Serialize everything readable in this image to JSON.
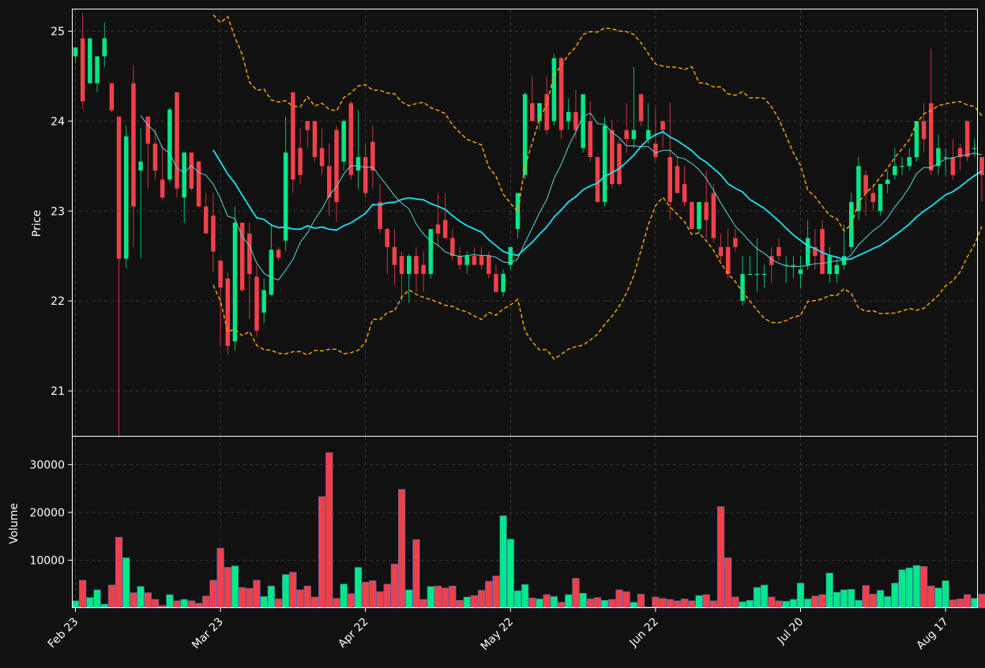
{
  "colors": {
    "background": "#111111",
    "up": "#00e887",
    "down": "#f2404a",
    "ma_fast": "#5ad7e0",
    "ma_slow": "#16e6f6",
    "band": "#f5a300",
    "grid": "#3a3a3a",
    "frame": "#ffffff",
    "text": "#ffffff"
  },
  "chart_data": {
    "type": "candlestick",
    "price_panel": {
      "ylabel": "Price",
      "ylim": [
        20.5,
        25.25
      ],
      "yticks": [
        21,
        22,
        23,
        24,
        25
      ],
      "grid": true
    },
    "volume_panel": {
      "ylabel": "Volume",
      "ylim": [
        0,
        36000
      ],
      "yticks": [
        10000,
        20000,
        30000
      ],
      "tick_labels": [
        "10000",
        "20000",
        "30000"
      ],
      "grid": true
    },
    "x": {
      "start_date": "2023-02-23",
      "num_days": 126,
      "tick_labels": [
        "Feb 23",
        "Mar 23",
        "Apr 22",
        "May 22",
        "Jun 22",
        "Jul 20",
        "Aug 17"
      ],
      "tick_positions": [
        0,
        20,
        40,
        60,
        80,
        100,
        120
      ]
    },
    "candles_ohlc": [
      [
        24.72,
        24.82,
        24.65,
        24.82
      ],
      [
        24.92,
        25.2,
        24.13,
        24.22
      ],
      [
        24.42,
        24.92,
        24.42,
        24.92
      ],
      [
        24.42,
        24.72,
        24.32,
        24.72
      ],
      [
        24.72,
        25.1,
        24.6,
        24.92
      ],
      [
        24.42,
        24.42,
        24.1,
        24.12
      ],
      [
        24.05,
        24.05,
        20.48,
        22.47
      ],
      [
        22.47,
        23.95,
        22.37,
        23.83
      ],
      [
        24.42,
        24.62,
        22.6,
        23.05
      ],
      [
        23.45,
        23.92,
        22.47,
        23.55
      ],
      [
        24.05,
        24.05,
        23.25,
        23.75
      ],
      [
        23.75,
        23.92,
        23.35,
        23.45
      ],
      [
        23.35,
        23.72,
        23.12,
        23.15
      ],
      [
        23.35,
        24.15,
        23.32,
        24.13
      ],
      [
        24.32,
        24.32,
        23.15,
        23.25
      ],
      [
        23.15,
        23.65,
        22.87,
        23.65
      ],
      [
        23.65,
        23.65,
        23.22,
        23.25
      ],
      [
        23.55,
        23.55,
        23.05,
        23.05
      ],
      [
        23.05,
        23.2,
        22.75,
        22.75
      ],
      [
        22.95,
        23.2,
        22.32,
        22.55
      ],
      [
        22.45,
        22.45,
        21.5,
        22.15
      ],
      [
        22.25,
        22.32,
        21.4,
        21.5
      ],
      [
        21.55,
        23.05,
        21.45,
        22.87
      ],
      [
        22.87,
        22.87,
        22.1,
        22.12
      ],
      [
        22.75,
        22.87,
        21.8,
        22.3
      ],
      [
        22.27,
        22.4,
        21.6,
        21.67
      ],
      [
        21.87,
        22.25,
        21.75,
        22.12
      ],
      [
        22.07,
        22.85,
        22.05,
        22.57
      ],
      [
        22.57,
        22.6,
        22.45,
        22.48
      ],
      [
        22.67,
        24.05,
        22.55,
        23.65
      ],
      [
        24.32,
        24.32,
        23.2,
        23.35
      ],
      [
        23.7,
        23.92,
        23.3,
        23.4
      ],
      [
        24.0,
        24.0,
        23.7,
        23.9
      ],
      [
        24.0,
        24.0,
        23.55,
        23.6
      ],
      [
        23.7,
        23.92,
        23.4,
        23.5
      ],
      [
        23.5,
        23.75,
        22.95,
        23.15
      ],
      [
        23.9,
        23.95,
        22.88,
        23.1
      ],
      [
        23.55,
        24.02,
        23.45,
        24.0
      ],
      [
        24.2,
        24.22,
        23.35,
        23.4
      ],
      [
        23.45,
        24.12,
        23.25,
        23.6
      ],
      [
        23.6,
        23.75,
        23.15,
        23.2
      ],
      [
        23.77,
        23.95,
        23.25,
        23.45
      ],
      [
        23.1,
        23.3,
        22.75,
        22.8
      ],
      [
        22.8,
        22.82,
        22.3,
        22.6
      ],
      [
        22.6,
        22.8,
        22.18,
        22.4
      ],
      [
        22.5,
        22.55,
        22.0,
        22.3
      ],
      [
        22.3,
        22.52,
        21.98,
        22.5
      ],
      [
        22.5,
        22.6,
        22.1,
        22.3
      ],
      [
        22.4,
        22.55,
        22.1,
        22.3
      ],
      [
        22.3,
        22.8,
        22.25,
        22.8
      ],
      [
        22.85,
        23.2,
        22.6,
        22.75
      ],
      [
        22.9,
        23.2,
        22.7,
        22.7
      ],
      [
        22.7,
        22.8,
        22.45,
        22.5
      ],
      [
        22.5,
        22.6,
        22.35,
        22.4
      ],
      [
        22.4,
        22.55,
        22.3,
        22.5
      ],
      [
        22.5,
        22.6,
        22.4,
        22.4
      ],
      [
        22.5,
        22.6,
        22.35,
        22.4
      ],
      [
        22.5,
        22.55,
        22.25,
        22.3
      ],
      [
        22.3,
        22.4,
        22.1,
        22.1
      ],
      [
        22.1,
        22.35,
        22.05,
        22.3
      ],
      [
        22.4,
        22.6,
        22.35,
        22.6
      ],
      [
        22.8,
        23.2,
        22.7,
        23.2
      ],
      [
        23.4,
        24.32,
        23.35,
        24.3
      ],
      [
        24.2,
        24.5,
        24.0,
        24.0
      ],
      [
        24.0,
        24.2,
        23.9,
        24.2
      ],
      [
        24.3,
        24.5,
        23.85,
        23.9
      ],
      [
        24.0,
        24.75,
        23.95,
        24.7
      ],
      [
        24.7,
        24.72,
        23.8,
        23.9
      ],
      [
        24.0,
        24.25,
        23.9,
        24.1
      ],
      [
        24.1,
        24.35,
        23.8,
        23.9
      ],
      [
        23.7,
        24.3,
        23.65,
        24.3
      ],
      [
        24.0,
        24.22,
        23.55,
        23.6
      ],
      [
        23.6,
        23.6,
        23.1,
        23.1
      ],
      [
        23.1,
        24.05,
        23.05,
        23.95
      ],
      [
        23.9,
        24.02,
        23.25,
        23.3
      ],
      [
        23.75,
        23.8,
        23.28,
        23.3
      ],
      [
        23.9,
        24.2,
        23.65,
        23.8
      ],
      [
        23.8,
        24.6,
        23.7,
        23.9
      ],
      [
        24.3,
        24.3,
        23.95,
        24.0
      ],
      [
        23.8,
        24.2,
        23.75,
        23.9
      ],
      [
        23.75,
        24.15,
        23.55,
        23.6
      ],
      [
        24.0,
        24.0,
        23.7,
        23.9
      ],
      [
        23.6,
        24.2,
        22.9,
        23.1
      ],
      [
        23.5,
        23.6,
        23.2,
        23.2
      ],
      [
        23.3,
        23.5,
        23.05,
        23.1
      ],
      [
        23.1,
        23.1,
        22.85,
        22.8
      ],
      [
        22.8,
        23.1,
        22.75,
        23.1
      ],
      [
        23.1,
        23.45,
        22.7,
        22.9
      ],
      [
        23.2,
        23.3,
        22.65,
        22.7
      ],
      [
        22.6,
        22.75,
        22.45,
        22.5
      ],
      [
        22.6,
        22.8,
        22.25,
        22.3
      ],
      [
        22.7,
        22.8,
        22.55,
        22.6
      ],
      [
        22.0,
        22.5,
        21.95,
        22.3
      ],
      [
        22.3,
        22.5,
        22.3,
        22.3
      ],
      [
        22.3,
        22.7,
        22.1,
        22.3
      ],
      [
        22.3,
        22.4,
        22.15,
        22.3
      ],
      [
        22.5,
        22.6,
        22.2,
        22.4
      ],
      [
        22.6,
        22.7,
        22.45,
        22.5
      ],
      [
        22.4,
        22.5,
        22.2,
        22.4
      ],
      [
        22.4,
        22.5,
        22.25,
        22.4
      ],
      [
        22.3,
        22.5,
        22.15,
        22.35
      ],
      [
        22.4,
        22.9,
        22.35,
        22.7
      ],
      [
        22.6,
        22.8,
        22.35,
        22.5
      ],
      [
        22.8,
        22.9,
        22.3,
        22.3
      ],
      [
        22.3,
        22.6,
        22.2,
        22.5
      ],
      [
        22.3,
        22.5,
        22.2,
        22.4
      ],
      [
        22.4,
        22.85,
        22.35,
        22.5
      ],
      [
        22.6,
        23.2,
        22.55,
        23.1
      ],
      [
        23.0,
        23.6,
        22.9,
        23.5
      ],
      [
        23.4,
        23.45,
        22.95,
        23.2
      ],
      [
        23.2,
        23.3,
        23.0,
        23.1
      ],
      [
        23.0,
        23.3,
        22.95,
        23.3
      ],
      [
        23.3,
        23.45,
        23.2,
        23.35
      ],
      [
        23.4,
        23.7,
        23.35,
        23.5
      ],
      [
        23.5,
        23.6,
        23.4,
        23.5
      ],
      [
        23.5,
        23.7,
        23.45,
        23.6
      ],
      [
        23.6,
        24.0,
        23.55,
        24.0
      ],
      [
        24.0,
        24.2,
        23.65,
        23.8
      ],
      [
        24.2,
        24.8,
        23.4,
        23.45
      ],
      [
        23.5,
        23.85,
        23.4,
        23.7
      ],
      [
        23.6,
        23.7,
        23.4,
        23.6
      ],
      [
        23.6,
        23.8,
        23.35,
        23.4
      ],
      [
        23.7,
        23.75,
        23.45,
        23.6
      ],
      [
        24.0,
        24.0,
        23.55,
        23.6
      ],
      [
        23.7,
        23.8,
        23.6,
        23.7
      ],
      [
        23.6,
        23.6,
        23.1,
        23.4
      ]
    ],
    "volume": [
      1500,
      5800,
      2200,
      3800,
      800,
      4800,
      14800,
      10500,
      3200,
      4500,
      3200,
      1800,
      500,
      2800,
      1500,
      1800,
      1500,
      1000,
      2500,
      5800,
      12500,
      8500,
      8800,
      4300,
      4100,
      5800,
      2400,
      4600,
      1900,
      7000,
      7500,
      3800,
      4600,
      2300,
      23300,
      32500,
      2000,
      5000,
      3000,
      8500,
      5400,
      5700,
      3400,
      5000,
      9200,
      24800,
      3800,
      14300,
      1800,
      4500,
      4600,
      4200,
      4600,
      1600,
      2300,
      2600,
      3700,
      5600,
      6700,
      19300,
      14400,
      3600,
      4900,
      2100,
      1900,
      2800,
      2400,
      1200,
      2800,
      6200,
      3100,
      1900,
      2200,
      1600,
      1800,
      3800,
      3400,
      1200,
      2900,
      200,
      2300,
      2000,
      1800,
      1500,
      1900,
      1500,
      2600,
      2800,
      1500,
      21200,
      10500,
      2300,
      1300,
      1600,
      4300,
      4800,
      2300,
      1500,
      1400,
      1800,
      5200,
      1900,
      2500,
      2800,
      7300,
      3300,
      3800,
      3900,
      1600,
      4700,
      2900,
      3700,
      2400,
      5200,
      8000,
      8400,
      8900,
      8700,
      4600,
      4200,
      5700,
      1700,
      1900,
      2800,
      2000,
      2900
    ],
    "overlays": [
      {
        "kind": "moving-average",
        "window": 10,
        "color": "#5ad7e0"
      },
      {
        "kind": "moving-average",
        "window": 20,
        "color": "#16e6f6"
      },
      {
        "kind": "bollinger-upper",
        "window": 20,
        "color": "#f5a300",
        "style": "dashed"
      },
      {
        "kind": "bollinger-lower",
        "window": 20,
        "color": "#f5a300",
        "style": "dashed"
      }
    ]
  }
}
